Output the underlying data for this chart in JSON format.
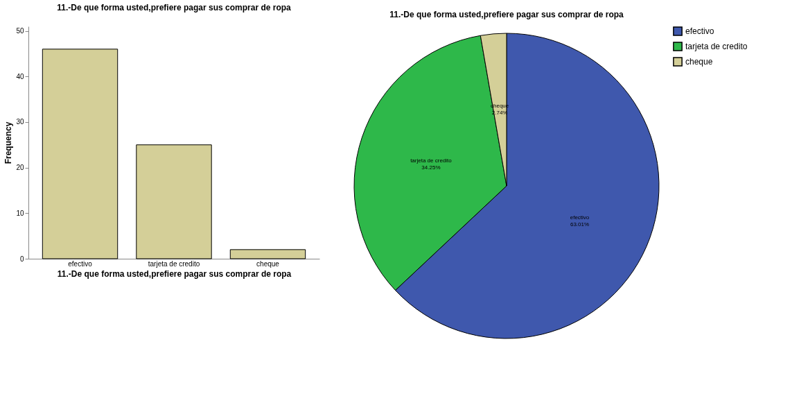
{
  "chart_data": [
    {
      "type": "bar",
      "title": "11.-De que forma usted,prefiere pagar sus comprar de ropa",
      "xlabel": "11.-De que forma usted,prefiere pagar sus comprar de ropa",
      "ylabel": "Frequency",
      "categories": [
        "efectivo",
        "tarjeta de credito",
        "cheque"
      ],
      "values": [
        46,
        25,
        2
      ],
      "color": "#d4cf98",
      "ylim": [
        0,
        51
      ],
      "yticks": [
        0,
        10,
        20,
        30,
        40,
        50
      ],
      "grid": false
    },
    {
      "type": "pie",
      "title": "11.-De que forma usted,prefiere pagar sus comprar de ropa",
      "categories": [
        "efectivo",
        "tarjeta de credito",
        "cheque"
      ],
      "values": [
        63.01,
        34.25,
        2.74
      ],
      "colors": [
        "#3f58ad",
        "#2eb84a",
        "#d4cf98"
      ],
      "value_labels": [
        "63.01%",
        "34.25%",
        "2.74%"
      ],
      "legend": "top right"
    }
  ]
}
